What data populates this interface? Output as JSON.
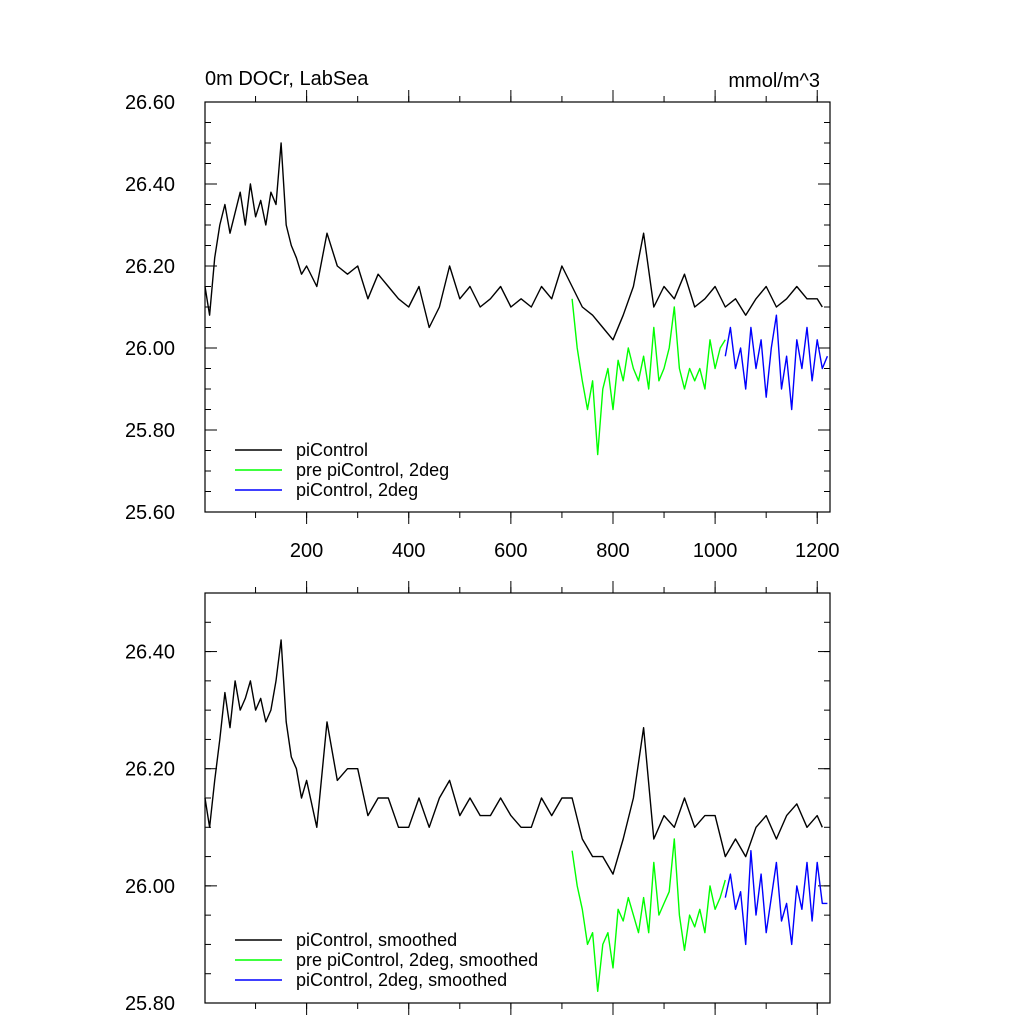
{
  "colors": {
    "piControl": "#000000",
    "pre_piControl_2deg": "#00ff00",
    "piControl_2deg": "#0000ff"
  },
  "chart_data": [
    {
      "type": "line",
      "title": "0m DOCr, LabSea",
      "units": "mmol/m^3",
      "xlim": [
        1,
        1225
      ],
      "ylim": [
        25.6,
        26.6
      ],
      "x_ticks": [
        200,
        400,
        600,
        800,
        1000,
        1200
      ],
      "x_tick_labels": [
        "200",
        "400",
        "600",
        "800",
        "1000",
        "1200"
      ],
      "y_ticks": [
        25.6,
        25.8,
        26.0,
        26.2,
        26.4,
        26.6
      ],
      "y_tick_labels": [
        "25.60",
        "25.80",
        "26.00",
        "26.20",
        "26.40",
        "26.60"
      ],
      "legend_position": "bottom-left",
      "series": [
        {
          "name": "piControl",
          "color_key": "piControl",
          "x": [
            1,
            10,
            20,
            30,
            40,
            50,
            60,
            70,
            80,
            90,
            100,
            110,
            120,
            130,
            140,
            150,
            160,
            170,
            180,
            190,
            200,
            220,
            240,
            260,
            280,
            300,
            320,
            340,
            360,
            380,
            400,
            420,
            440,
            460,
            480,
            500,
            520,
            540,
            560,
            580,
            600,
            620,
            640,
            660,
            680,
            700,
            720,
            740,
            760,
            780,
            800,
            820,
            840,
            860,
            880,
            900,
            920,
            940,
            960,
            980,
            1000,
            1020,
            1040,
            1060,
            1080,
            1100,
            1120,
            1140,
            1160,
            1180,
            1200,
            1210
          ],
          "y": [
            26.15,
            26.08,
            26.22,
            26.3,
            26.35,
            26.28,
            26.33,
            26.38,
            26.3,
            26.4,
            26.32,
            26.36,
            26.3,
            26.38,
            26.35,
            26.5,
            26.3,
            26.25,
            26.22,
            26.18,
            26.2,
            26.15,
            26.28,
            26.2,
            26.18,
            26.2,
            26.12,
            26.18,
            26.15,
            26.12,
            26.1,
            26.15,
            26.05,
            26.1,
            26.2,
            26.12,
            26.15,
            26.1,
            26.12,
            26.15,
            26.1,
            26.12,
            26.1,
            26.15,
            26.12,
            26.2,
            26.15,
            26.1,
            26.08,
            26.05,
            26.02,
            26.08,
            26.15,
            26.28,
            26.1,
            26.15,
            26.12,
            26.18,
            26.1,
            26.12,
            26.15,
            26.1,
            26.12,
            26.08,
            26.12,
            26.15,
            26.1,
            26.12,
            26.15,
            26.12,
            26.12,
            26.1
          ]
        },
        {
          "name": "pre piControl, 2deg",
          "color_key": "pre_piControl_2deg",
          "x": [
            720,
            730,
            740,
            750,
            760,
            770,
            780,
            790,
            800,
            810,
            820,
            830,
            840,
            850,
            860,
            870,
            880,
            890,
            900,
            910,
            920,
            930,
            940,
            950,
            960,
            970,
            980,
            990,
            1000,
            1010,
            1020
          ],
          "y": [
            26.12,
            26.0,
            25.92,
            25.85,
            25.92,
            25.74,
            25.9,
            25.95,
            25.85,
            25.97,
            25.92,
            26.0,
            25.95,
            25.92,
            25.98,
            25.9,
            26.05,
            25.92,
            25.95,
            26.0,
            26.1,
            25.95,
            25.9,
            25.95,
            25.92,
            25.95,
            25.9,
            26.02,
            25.95,
            26.0,
            26.02
          ]
        },
        {
          "name": "piControl, 2deg",
          "color_key": "piControl_2deg",
          "x": [
            1020,
            1030,
            1040,
            1050,
            1060,
            1070,
            1080,
            1090,
            1100,
            1110,
            1120,
            1130,
            1140,
            1150,
            1160,
            1170,
            1180,
            1190,
            1200,
            1210,
            1220
          ],
          "y": [
            25.98,
            26.05,
            25.95,
            26.0,
            25.9,
            26.05,
            25.95,
            26.02,
            25.88,
            26.0,
            26.08,
            25.9,
            25.98,
            25.85,
            26.02,
            25.95,
            26.05,
            25.92,
            26.02,
            25.95,
            25.98
          ]
        }
      ]
    },
    {
      "type": "line",
      "title": "",
      "xlim": [
        1,
        1225
      ],
      "ylim": [
        25.8,
        26.5
      ],
      "x_ticks": [
        200,
        400,
        600,
        800,
        1000,
        1200
      ],
      "x_tick_labels": [],
      "y_ticks": [
        25.8,
        26.0,
        26.2,
        26.4
      ],
      "y_tick_labels": [
        "25.80",
        "26.00",
        "26.20",
        "26.40"
      ],
      "legend_position": "bottom-left",
      "series": [
        {
          "name": "piControl, smoothed",
          "color_key": "piControl",
          "x": [
            1,
            10,
            20,
            30,
            40,
            50,
            60,
            70,
            80,
            90,
            100,
            110,
            120,
            130,
            140,
            150,
            160,
            170,
            180,
            190,
            200,
            220,
            240,
            260,
            280,
            300,
            320,
            340,
            360,
            380,
            400,
            420,
            440,
            460,
            480,
            500,
            520,
            540,
            560,
            580,
            600,
            620,
            640,
            660,
            680,
            700,
            720,
            740,
            760,
            780,
            800,
            820,
            840,
            860,
            880,
            900,
            920,
            940,
            960,
            980,
            1000,
            1020,
            1040,
            1060,
            1080,
            1100,
            1120,
            1140,
            1160,
            1180,
            1200,
            1210
          ],
          "y": [
            26.15,
            26.1,
            26.18,
            26.25,
            26.33,
            26.27,
            26.35,
            26.3,
            26.32,
            26.35,
            26.3,
            26.32,
            26.28,
            26.3,
            26.35,
            26.42,
            26.28,
            26.22,
            26.2,
            26.15,
            26.18,
            26.1,
            26.28,
            26.18,
            26.2,
            26.2,
            26.12,
            26.15,
            26.15,
            26.1,
            26.1,
            26.15,
            26.1,
            26.15,
            26.18,
            26.12,
            26.15,
            26.12,
            26.12,
            26.15,
            26.12,
            26.1,
            26.1,
            26.15,
            26.12,
            26.15,
            26.15,
            26.08,
            26.05,
            26.05,
            26.02,
            26.08,
            26.15,
            26.27,
            26.08,
            26.12,
            26.1,
            26.15,
            26.1,
            26.12,
            26.12,
            26.05,
            26.08,
            26.05,
            26.1,
            26.12,
            26.08,
            26.12,
            26.14,
            26.1,
            26.12,
            26.1
          ]
        },
        {
          "name": "pre piControl, 2deg, smoothed",
          "color_key": "pre_piControl_2deg",
          "x": [
            720,
            730,
            740,
            750,
            760,
            770,
            780,
            790,
            800,
            810,
            820,
            830,
            840,
            850,
            860,
            870,
            880,
            890,
            900,
            910,
            920,
            930,
            940,
            950,
            960,
            970,
            980,
            990,
            1000,
            1010,
            1020
          ],
          "y": [
            26.06,
            26.0,
            25.96,
            25.9,
            25.92,
            25.82,
            25.9,
            25.92,
            25.86,
            25.96,
            25.94,
            25.98,
            25.95,
            25.92,
            25.98,
            25.92,
            26.04,
            25.95,
            25.97,
            25.99,
            26.08,
            25.95,
            25.89,
            25.95,
            25.93,
            25.96,
            25.92,
            26.0,
            25.96,
            25.98,
            26.01
          ]
        },
        {
          "name": "piControl, 2deg, smoothed",
          "color_key": "piControl_2deg",
          "x": [
            1020,
            1030,
            1040,
            1050,
            1060,
            1070,
            1080,
            1090,
            1100,
            1110,
            1120,
            1130,
            1140,
            1150,
            1160,
            1170,
            1180,
            1190,
            1200,
            1210,
            1220
          ],
          "y": [
            25.98,
            26.02,
            25.96,
            25.99,
            25.9,
            26.06,
            25.95,
            26.02,
            25.92,
            25.98,
            26.04,
            25.94,
            25.97,
            25.9,
            26.0,
            25.96,
            26.04,
            25.94,
            26.04,
            25.97,
            25.97
          ]
        }
      ]
    }
  ]
}
